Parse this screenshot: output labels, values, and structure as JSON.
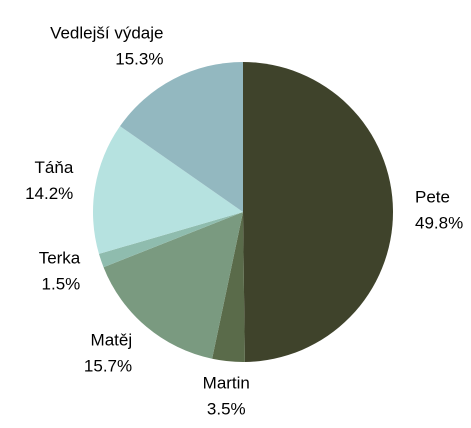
{
  "chart_data": {
    "type": "pie",
    "categories": [
      "Pete",
      "Martin",
      "Matěj",
      "Terka",
      "Táňa",
      "Vedlejší výdaje"
    ],
    "values": [
      49.8,
      3.5,
      15.7,
      1.5,
      14.2,
      15.3
    ],
    "value_labels": [
      "49.8%",
      "3.5%",
      "15.7%",
      "1.5%",
      "14.2%",
      "15.3%"
    ],
    "colors": [
      "#3f432b",
      "#5a6b4a",
      "#7a9a80",
      "#8fbcae",
      "#b6e2e0",
      "#93b8c0"
    ]
  }
}
